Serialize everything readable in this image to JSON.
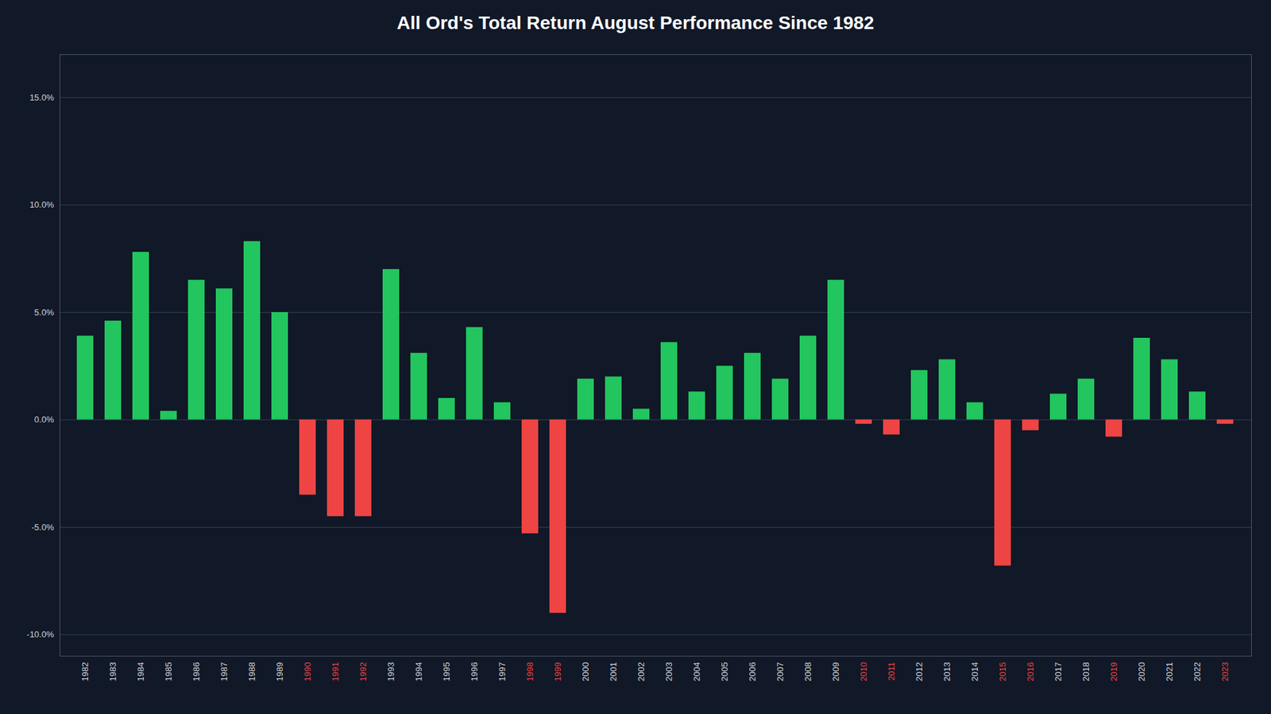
{
  "chart_data": {
    "type": "bar",
    "title": "All Ord's Total Return August Performance Since 1982",
    "categories": [
      "1982",
      "1983",
      "1984",
      "1985",
      "1986",
      "1987",
      "1988",
      "1989",
      "1990",
      "1991",
      "1992",
      "1993",
      "1994",
      "1995",
      "1996",
      "1997",
      "1998",
      "1999",
      "2000",
      "2001",
      "2002",
      "2003",
      "2004",
      "2005",
      "2006",
      "2007",
      "2008",
      "2009",
      "2010",
      "2011",
      "2012",
      "2013",
      "2014",
      "2015",
      "2016",
      "2017",
      "2018",
      "2019",
      "2020",
      "2021",
      "2022",
      "2023"
    ],
    "values": [
      3.9,
      4.6,
      7.8,
      0.4,
      6.5,
      6.1,
      8.3,
      5.0,
      -3.5,
      -4.5,
      -4.5,
      7.0,
      3.1,
      1.0,
      4.3,
      0.8,
      -5.3,
      -9.0,
      1.9,
      2.0,
      0.5,
      3.6,
      1.3,
      2.5,
      3.1,
      1.9,
      3.9,
      6.5,
      -0.2,
      -0.7,
      2.3,
      2.8,
      0.8,
      -6.8,
      -0.5,
      1.2,
      1.9,
      -0.8,
      3.8,
      2.8,
      1.3,
      -0.2
    ],
    "colors": [
      "#22c55e",
      "#22c55e",
      "#22c55e",
      "#22c55e",
      "#22c55e",
      "#22c55e",
      "#22c55e",
      "#22c55e",
      "#ef4444",
      "#ef4444",
      "#ef4444",
      "#22c55e",
      "#22c55e",
      "#22c55e",
      "#22c55e",
      "#22c55e",
      "#ef4444",
      "#ef4444",
      "#22c55e",
      "#22c55e",
      "#22c55e",
      "#22c55e",
      "#22c55e",
      "#22c55e",
      "#22c55e",
      "#22c55e",
      "#22c55e",
      "#22c55e",
      "#ef4444",
      "#ef4444",
      "#22c55e",
      "#22c55e",
      "#22c55e",
      "#ef4444",
      "#ef4444",
      "#22c55e",
      "#22c55e",
      "#ef4444",
      "#22c55e",
      "#22c55e",
      "#22c55e",
      "#ef4444"
    ],
    "ylim": [
      -11,
      17
    ],
    "yticks": [
      {
        "value": -10,
        "label": "-10.0%"
      },
      {
        "value": -5,
        "label": "-5.0%"
      },
      {
        "value": 0,
        "label": "0.0%"
      },
      {
        "value": 5,
        "label": "5.0%"
      },
      {
        "value": 10,
        "label": "10.0%"
      },
      {
        "value": 15,
        "label": "15.0%"
      }
    ],
    "grid": true
  }
}
